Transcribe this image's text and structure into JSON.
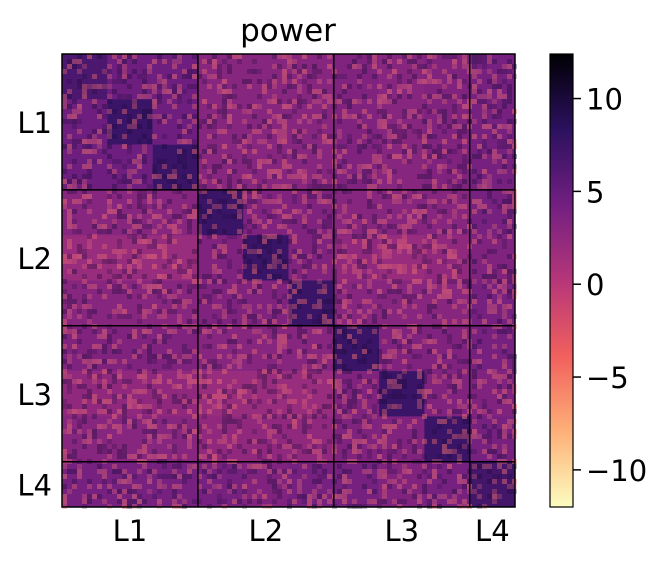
{
  "chart_data": {
    "type": "heatmap",
    "title": "power",
    "xlabel": "",
    "ylabel": "",
    "blocks": [
      {
        "label": "L1",
        "size": 3
      },
      {
        "label": "L2",
        "size": 3
      },
      {
        "label": "L3",
        "size": 3
      },
      {
        "label": "L4",
        "size": 1
      }
    ],
    "x_tick_labels": [
      "L1",
      "L2",
      "L3",
      "L4"
    ],
    "y_tick_labels": [
      "L1",
      "L2",
      "L3",
      "L4"
    ],
    "colormap": "magma_r",
    "colorbar": {
      "range": [
        -12,
        12.4
      ],
      "ticks": [
        -10,
        -5,
        0,
        5,
        10
      ],
      "tick_labels": [
        "−10",
        "−5",
        "0",
        "5",
        "10"
      ],
      "stops": [
        "#fcfdbf",
        "#feb078",
        "#f1605d",
        "#b63679",
        "#721f81",
        "#2c115f",
        "#000004"
      ]
    },
    "sub_block_mean_values": [
      [
        6.5,
        4.5,
        4.5,
        3.0,
        3.0,
        3.0,
        3.5,
        3.0,
        3.5,
        4.0
      ],
      [
        4.5,
        7.5,
        4.5,
        3.0,
        3.0,
        3.0,
        3.5,
        3.0,
        3.5,
        4.0
      ],
      [
        4.5,
        4.5,
        7.5,
        3.0,
        3.0,
        3.0,
        3.5,
        3.0,
        3.5,
        4.0
      ],
      [
        3.0,
        3.0,
        3.0,
        7.5,
        3.5,
        3.5,
        3.0,
        3.0,
        3.0,
        4.0
      ],
      [
        2.0,
        2.0,
        2.0,
        3.5,
        7.5,
        3.5,
        2.5,
        2.0,
        2.5,
        3.5
      ],
      [
        3.0,
        3.0,
        3.0,
        3.5,
        3.5,
        7.5,
        3.0,
        3.0,
        3.0,
        4.0
      ],
      [
        3.5,
        3.5,
        3.5,
        3.0,
        3.0,
        3.0,
        7.5,
        3.5,
        3.5,
        4.0
      ],
      [
        2.5,
        2.5,
        2.5,
        2.0,
        2.0,
        2.0,
        3.5,
        7.5,
        3.5,
        3.5
      ],
      [
        3.0,
        3.0,
        3.0,
        2.5,
        2.5,
        2.5,
        3.5,
        3.5,
        7.5,
        4.0
      ],
      [
        4.0,
        4.0,
        4.0,
        4.0,
        3.5,
        4.0,
        4.0,
        3.5,
        4.0,
        7.0
      ]
    ]
  }
}
